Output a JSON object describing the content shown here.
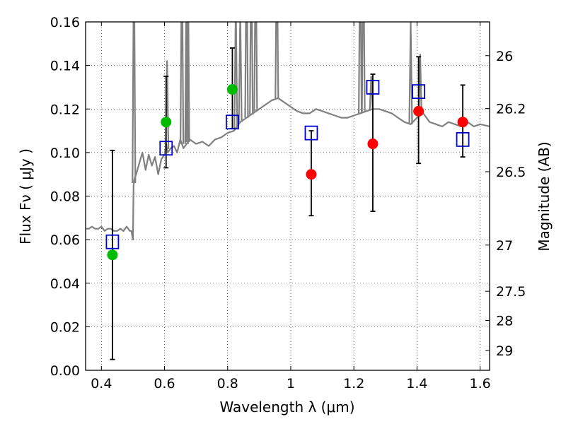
{
  "chart_data": {
    "type": "scatter",
    "xlabel": "Wavelength  λ (μm)",
    "ylabel": "Flux  Fν  ( μJy )",
    "ylabel_right": "Magnitude (AB)",
    "xlim": [
      0.35,
      1.63
    ],
    "ylim": [
      0.0,
      0.16
    ],
    "grid": true,
    "x_ticks": [
      0.4,
      0.6,
      0.8,
      1.0,
      1.2,
      1.4,
      1.6
    ],
    "x_tick_labels": [
      "0.4",
      "0.6",
      "0.8",
      "1",
      "1.2",
      "1.4",
      "1.6"
    ],
    "y_ticks": [
      0.0,
      0.02,
      0.04,
      0.06,
      0.08,
      0.1,
      0.12,
      0.14,
      0.16
    ],
    "y_tick_labels": [
      "0.00",
      "0.02",
      "0.04",
      "0.06",
      "0.08",
      "0.10",
      "0.12",
      "0.14",
      "0.16"
    ],
    "right_ticks": [
      {
        "label": "26",
        "flux": 0.1445
      },
      {
        "label": "26.2",
        "flux": 0.1202
      },
      {
        "label": "26.5",
        "flux": 0.0912
      },
      {
        "label": "27",
        "flux": 0.0575
      },
      {
        "label": "27.5",
        "flux": 0.0363
      },
      {
        "label": "28",
        "flux": 0.0229
      },
      {
        "label": "29",
        "flux": 0.0091
      }
    ],
    "colors": {
      "spectrum": "#808080",
      "green": "#00bb00",
      "red": "#ff0000",
      "model_box": "#0000cc",
      "error_bar": "#000000"
    },
    "spectrum": {
      "x": [
        0.35,
        0.36,
        0.37,
        0.38,
        0.39,
        0.4,
        0.41,
        0.42,
        0.43,
        0.44,
        0.45,
        0.46,
        0.47,
        0.48,
        0.49,
        0.495,
        0.5,
        0.502,
        0.505,
        0.51,
        0.52,
        0.53,
        0.54,
        0.55,
        0.56,
        0.57,
        0.58,
        0.59,
        0.6,
        0.605,
        0.61,
        0.62,
        0.63,
        0.64,
        0.65,
        0.655,
        0.66,
        0.67,
        0.68,
        0.69,
        0.7,
        0.72,
        0.74,
        0.76,
        0.78,
        0.8,
        0.82,
        0.84,
        0.86,
        0.88,
        0.9,
        0.92,
        0.94,
        0.96,
        0.98,
        1.0,
        1.02,
        1.04,
        1.06,
        1.08,
        1.1,
        1.12,
        1.14,
        1.16,
        1.18,
        1.2,
        1.22,
        1.24,
        1.26,
        1.28,
        1.3,
        1.32,
        1.34,
        1.36,
        1.38,
        1.4,
        1.42,
        1.44,
        1.46,
        1.48,
        1.5,
        1.52,
        1.54,
        1.56,
        1.58,
        1.6,
        1.63
      ],
      "y": [
        0.065,
        0.065,
        0.066,
        0.065,
        0.065,
        0.066,
        0.064,
        0.065,
        0.065,
        0.064,
        0.064,
        0.065,
        0.064,
        0.066,
        0.064,
        0.064,
        0.06,
        0.085,
        0.088,
        0.09,
        0.095,
        0.1,
        0.092,
        0.099,
        0.094,
        0.098,
        0.09,
        0.097,
        0.099,
        0.104,
        0.1,
        0.102,
        0.103,
        0.1,
        0.106,
        0.104,
        0.102,
        0.104,
        0.106,
        0.105,
        0.104,
        0.105,
        0.103,
        0.106,
        0.107,
        0.109,
        0.11,
        0.114,
        0.116,
        0.118,
        0.12,
        0.122,
        0.124,
        0.125,
        0.123,
        0.121,
        0.119,
        0.118,
        0.118,
        0.12,
        0.119,
        0.118,
        0.117,
        0.116,
        0.116,
        0.117,
        0.118,
        0.119,
        0.12,
        0.12,
        0.119,
        0.118,
        0.116,
        0.114,
        0.113,
        0.116,
        0.118,
        0.114,
        0.113,
        0.112,
        0.114,
        0.113,
        0.112,
        0.114,
        0.112,
        0.113,
        0.112
      ]
    },
    "spectrum_lines": [
      {
        "x": 0.503,
        "y": 0.2
      },
      {
        "x": 0.608,
        "y": 0.142
      },
      {
        "x": 0.655,
        "y": 0.2
      },
      {
        "x": 0.67,
        "y": 0.2
      },
      {
        "x": 0.674,
        "y": 0.2
      },
      {
        "x": 0.826,
        "y": 0.17
      },
      {
        "x": 0.84,
        "y": 0.165
      },
      {
        "x": 0.86,
        "y": 0.2
      },
      {
        "x": 0.875,
        "y": 0.2
      },
      {
        "x": 0.889,
        "y": 0.2
      },
      {
        "x": 0.956,
        "y": 0.2
      },
      {
        "x": 1.22,
        "y": 0.2
      },
      {
        "x": 1.23,
        "y": 0.2
      },
      {
        "x": 1.255,
        "y": 0.135
      },
      {
        "x": 1.38,
        "y": 0.16
      },
      {
        "x": 1.41,
        "y": 0.145
      }
    ],
    "error_bars": [
      {
        "x": 0.435,
        "lower": 0.005,
        "upper": 0.101
      },
      {
        "x": 0.605,
        "lower": 0.093,
        "upper": 0.135
      },
      {
        "x": 0.815,
        "lower": 0.111,
        "upper": 0.148
      },
      {
        "x": 1.065,
        "lower": 0.071,
        "upper": 0.11
      },
      {
        "x": 1.26,
        "lower": 0.073,
        "upper": 0.136
      },
      {
        "x": 1.405,
        "lower": 0.095,
        "upper": 0.144
      },
      {
        "x": 1.545,
        "lower": 0.098,
        "upper": 0.131
      }
    ],
    "series": [
      {
        "marker": "circle",
        "color_key": "green",
        "x": [
          0.435,
          0.605,
          0.815
        ],
        "y": [
          0.053,
          0.114,
          0.129
        ]
      },
      {
        "marker": "circle",
        "color_key": "red",
        "x": [
          1.065,
          1.26,
          1.405,
          1.545
        ],
        "y": [
          0.09,
          0.104,
          0.119,
          0.114
        ]
      },
      {
        "marker": "square",
        "color_key": "model_box",
        "x": [
          0.435,
          0.605,
          0.815,
          1.065,
          1.26,
          1.405,
          1.545
        ],
        "y": [
          0.059,
          0.102,
          0.114,
          0.109,
          0.13,
          0.128,
          0.106
        ]
      }
    ]
  }
}
